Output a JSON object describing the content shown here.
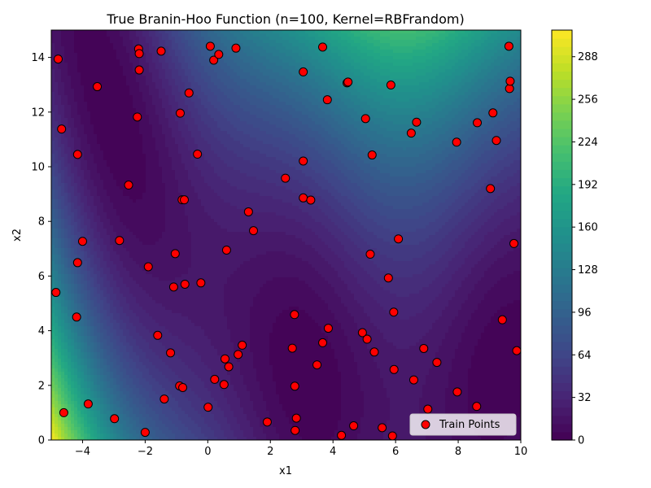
{
  "chart_data": {
    "type": "scatter",
    "title": "True Branin-Hoo Function (n=100, Kernel=RBFrandom)",
    "xlabel": "x1",
    "ylabel": "x2",
    "xlim": [
      -5,
      10
    ],
    "ylim": [
      0,
      15
    ],
    "x_ticks": [
      -4,
      -2,
      0,
      2,
      4,
      6,
      8,
      10
    ],
    "y_ticks": [
      0,
      2,
      4,
      6,
      8,
      10,
      12,
      14
    ],
    "background": {
      "type": "contourf",
      "function": "branin-hoo",
      "colormap": "viridis",
      "vmin": 0,
      "vmax": 308,
      "levels": 50
    },
    "colorbar": {
      "ticks": [
        0,
        32,
        64,
        96,
        128,
        160,
        192,
        224,
        256,
        288
      ]
    },
    "legend": {
      "placement": "bottom-right",
      "entries": [
        "Train Points"
      ]
    },
    "series": [
      {
        "name": "Train Points",
        "color": "#ff0000",
        "edge_color": "#000000",
        "points": [
          [
            -4.78,
            13.94
          ],
          [
            -4.67,
            11.38
          ],
          [
            -4.85,
            5.4
          ],
          [
            -4.6,
            1.0
          ],
          [
            -3.82,
            1.32
          ],
          [
            -3.53,
            12.93
          ],
          [
            -4.16,
            10.45
          ],
          [
            -4.16,
            6.49
          ],
          [
            -4.0,
            7.27
          ],
          [
            -4.19,
            4.5
          ],
          [
            -2.98,
            0.78
          ],
          [
            -2.82,
            7.3
          ],
          [
            -2.53,
            9.33
          ],
          [
            -2.21,
            14.31
          ],
          [
            -2.19,
            14.14
          ],
          [
            -2.19,
            13.54
          ],
          [
            -2.25,
            11.82
          ],
          [
            -1.9,
            6.34
          ],
          [
            -2.0,
            0.28
          ],
          [
            -1.49,
            14.23
          ],
          [
            -1.6,
            3.83
          ],
          [
            -1.39,
            1.5
          ],
          [
            -1.19,
            3.19
          ],
          [
            -1.09,
            5.6
          ],
          [
            -1.04,
            6.82
          ],
          [
            -0.9,
            1.98
          ],
          [
            -0.88,
            11.96
          ],
          [
            -0.82,
            8.79
          ],
          [
            -0.75,
            8.79
          ],
          [
            -0.8,
            1.92
          ],
          [
            -0.73,
            5.7
          ],
          [
            -0.6,
            12.7
          ],
          [
            -0.33,
            10.46
          ],
          [
            -0.22,
            5.75
          ],
          [
            0.01,
            1.2
          ],
          [
            0.08,
            14.41
          ],
          [
            0.19,
            13.9
          ],
          [
            0.22,
            2.22
          ],
          [
            0.35,
            14.11
          ],
          [
            0.52,
            2.03
          ],
          [
            0.55,
            2.97
          ],
          [
            0.6,
            6.95
          ],
          [
            0.67,
            2.68
          ],
          [
            0.9,
            14.34
          ],
          [
            0.97,
            3.13
          ],
          [
            1.1,
            3.47
          ],
          [
            1.3,
            8.35
          ],
          [
            1.46,
            7.66
          ],
          [
            1.9,
            0.66
          ],
          [
            2.48,
            9.58
          ],
          [
            2.7,
            3.36
          ],
          [
            2.77,
            4.59
          ],
          [
            2.78,
            1.97
          ],
          [
            2.79,
            0.35
          ],
          [
            2.83,
            0.8
          ],
          [
            3.05,
            13.47
          ],
          [
            3.05,
            8.86
          ],
          [
            3.05,
            10.21
          ],
          [
            3.29,
            8.78
          ],
          [
            3.49,
            2.75
          ],
          [
            3.67,
            14.38
          ],
          [
            3.67,
            3.56
          ],
          [
            3.82,
            12.45
          ],
          [
            3.85,
            4.09
          ],
          [
            4.27,
            0.17
          ],
          [
            4.45,
            13.07
          ],
          [
            4.48,
            13.1
          ],
          [
            4.66,
            0.52
          ],
          [
            4.94,
            3.93
          ],
          [
            5.04,
            11.76
          ],
          [
            5.09,
            3.69
          ],
          [
            5.19,
            6.8
          ],
          [
            5.25,
            10.43
          ],
          [
            5.32,
            3.22
          ],
          [
            5.57,
            0.45
          ],
          [
            5.77,
            5.93
          ],
          [
            5.85,
            12.99
          ],
          [
            5.9,
            0.15
          ],
          [
            5.94,
            4.68
          ],
          [
            5.95,
            2.58
          ],
          [
            6.09,
            7.36
          ],
          [
            6.5,
            11.23
          ],
          [
            6.58,
            2.2
          ],
          [
            6.67,
            11.63
          ],
          [
            6.9,
            3.35
          ],
          [
            7.03,
            1.13
          ],
          [
            7.32,
            2.84
          ],
          [
            7.95,
            10.9
          ],
          [
            7.97,
            1.76
          ],
          [
            8.59,
            1.23
          ],
          [
            8.61,
            11.61
          ],
          [
            9.03,
            9.2
          ],
          [
            9.11,
            11.97
          ],
          [
            9.22,
            10.96
          ],
          [
            9.41,
            4.4
          ],
          [
            9.62,
            14.41
          ],
          [
            9.64,
            12.86
          ],
          [
            9.66,
            13.13
          ],
          [
            9.78,
            7.19
          ],
          [
            9.87,
            3.27
          ]
        ]
      }
    ]
  }
}
